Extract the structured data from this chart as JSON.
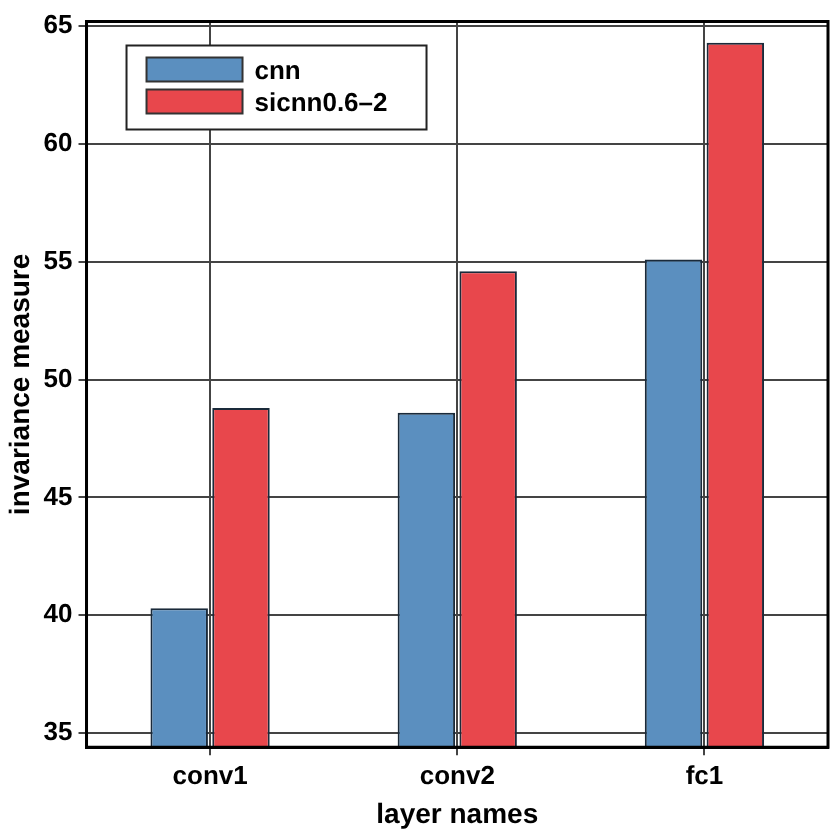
{
  "chart_data": {
    "type": "bar",
    "xlabel": "layer names",
    "ylabel": "invariance measure",
    "categories": [
      "conv1",
      "conv2",
      "fc1"
    ],
    "series": [
      {
        "name": "cnn",
        "color": "#5b8fbf",
        "values": [
          40.3,
          48.6,
          55.1
        ]
      },
      {
        "name": "sicnn0.6–2",
        "color": "#e8474c",
        "values": [
          48.8,
          54.6,
          64.3
        ]
      }
    ],
    "ylim": [
      34.4,
      65.2
    ],
    "yticks": [
      35,
      40,
      45,
      50,
      55,
      60,
      65
    ],
    "grid": true,
    "legend": "top left"
  }
}
